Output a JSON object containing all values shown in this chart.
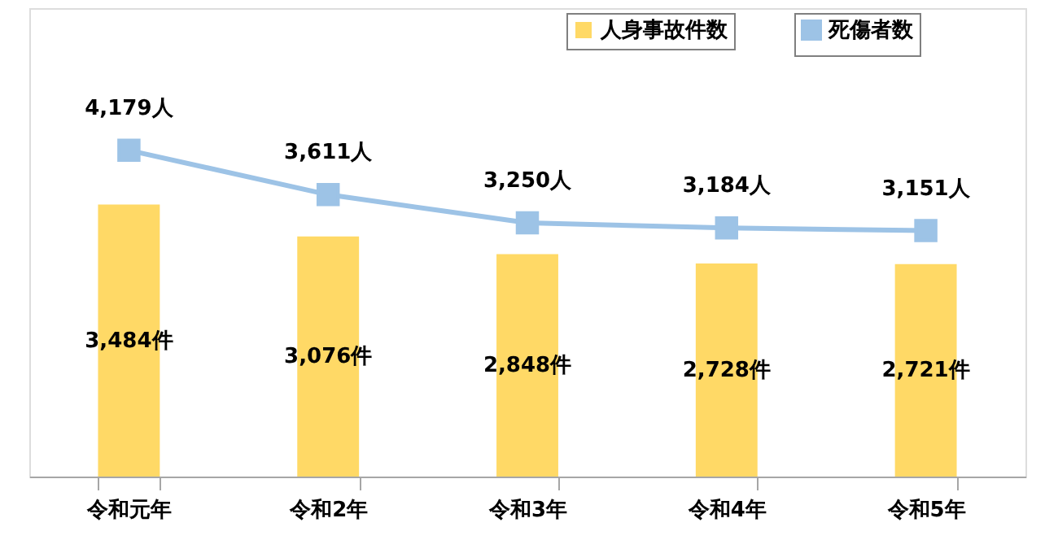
{
  "chart_data": {
    "type": "bar",
    "categories": [
      "令和元年",
      "令和2年",
      "令和3年",
      "令和4年",
      "令和5年"
    ],
    "series": [
      {
        "name": "人身事故件数",
        "color": "#ffd966",
        "values": [
          3484,
          3076,
          2848,
          2728,
          2721
        ],
        "value_labels": [
          "3,484件",
          "3,076件",
          "2,848件",
          "2,728件",
          "2,721件"
        ]
      },
      {
        "name": "死傷者数",
        "type": "line",
        "color": "#9dc3e6",
        "values": [
          4179,
          3611,
          3250,
          3184,
          3151
        ],
        "value_labels": [
          "4,179人",
          "3,611人",
          "3,250人",
          "3,184人",
          "3,151人"
        ],
        "marker": "square"
      }
    ],
    "ylim": [
      0,
      6000
    ],
    "tick_labels": "x",
    "legend": "top right",
    "grid": false
  }
}
